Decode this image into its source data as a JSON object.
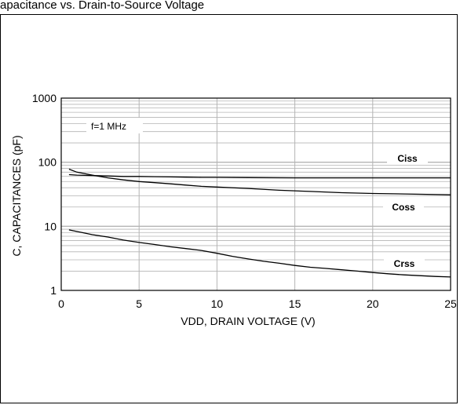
{
  "caption": "apacitance vs. Drain-to-Source Voltage",
  "chart_data": {
    "type": "line",
    "x_scale": "linear",
    "y_scale": "log",
    "xlim": [
      0,
      25
    ],
    "ylim": [
      1,
      1000
    ],
    "xlabel": "VDD, DRAIN VOLTAGE (V)",
    "ylabel": "C, CAPACITANCES (pF)",
    "x_ticks": [
      "0",
      "5",
      "10",
      "15",
      "20",
      "25"
    ],
    "x_tick_values": [
      0,
      5,
      10,
      15,
      20,
      25
    ],
    "y_ticks": [
      "1",
      "10",
      "100",
      "1000"
    ],
    "y_tick_values": [
      1,
      10,
      100,
      1000
    ],
    "grid": true,
    "line_color": "#000000",
    "annotation": "f=1 MHz",
    "series": [
      {
        "name": "Ciss",
        "x": [
          0.5,
          1,
          2,
          3,
          4,
          5,
          6,
          7,
          8,
          9,
          10,
          12,
          15,
          18,
          20,
          22,
          25
        ],
        "y": [
          64,
          63,
          62,
          61,
          60,
          60,
          59.5,
          59,
          58.5,
          58,
          58,
          57.5,
          57,
          57,
          57,
          57,
          57
        ]
      },
      {
        "name": "Coss",
        "x": [
          0.5,
          1,
          2,
          3,
          4,
          5,
          6,
          7,
          8,
          9,
          10,
          12,
          14,
          16,
          18,
          20,
          22,
          25
        ],
        "y": [
          78,
          70,
          63,
          57,
          53,
          50,
          48,
          46,
          44,
          42,
          41,
          39,
          36.5,
          35,
          33.5,
          32.5,
          32,
          31
        ]
      },
      {
        "name": "Crss",
        "x": [
          0.5,
          1,
          2,
          3,
          4,
          5,
          6,
          7,
          8,
          9,
          10,
          11,
          12,
          13,
          14,
          15,
          16,
          17,
          18,
          19,
          20,
          21,
          22,
          23,
          24,
          25
        ],
        "y": [
          8.8,
          8.3,
          7.4,
          6.8,
          6.1,
          5.6,
          5.2,
          4.8,
          4.5,
          4.2,
          3.8,
          3.4,
          3.1,
          2.85,
          2.65,
          2.45,
          2.3,
          2.2,
          2.1,
          2.0,
          1.9,
          1.82,
          1.75,
          1.7,
          1.65,
          1.62
        ]
      }
    ]
  }
}
